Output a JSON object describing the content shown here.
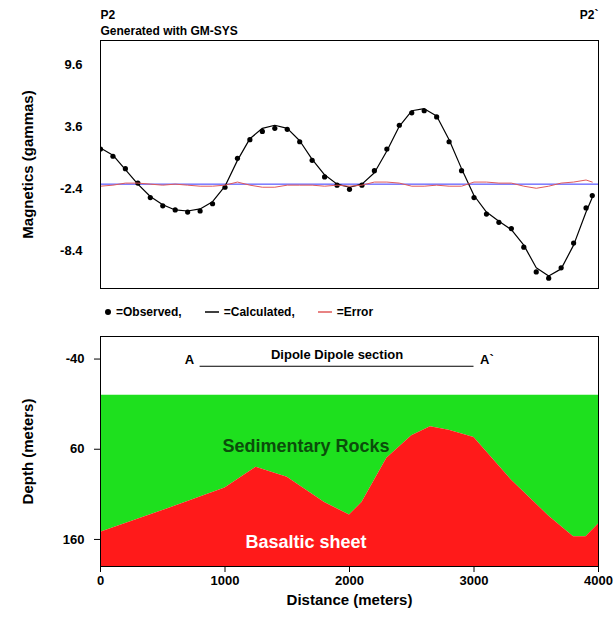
{
  "chart_data": [
    {
      "type": "line",
      "title": "P2",
      "subtitle": "Generated with GM-SYS",
      "end_title": "P2`",
      "y_label": "Magnetics (gammas)",
      "x": [
        0,
        100,
        200,
        300,
        400,
        500,
        600,
        700,
        800,
        900,
        1000,
        1100,
        1200,
        1300,
        1400,
        1500,
        1600,
        1700,
        1800,
        1900,
        2000,
        2100,
        2200,
        2300,
        2400,
        2500,
        2600,
        2700,
        2800,
        2900,
        3000,
        3100,
        3200,
        3300,
        3400,
        3500,
        3600,
        3700,
        3800,
        3900,
        3950
      ],
      "series": [
        {
          "name": "=Observed,",
          "type": "scatter",
          "marker": "circle",
          "color": "#000000",
          "values": [
            1.5,
            0.8,
            -0.4,
            -1.8,
            -3.2,
            -4.0,
            -4.4,
            -4.6,
            -4.5,
            -3.8,
            -2.2,
            0.6,
            2.4,
            3.2,
            3.5,
            3.4,
            2.2,
            0.4,
            -1.2,
            -2.0,
            -2.4,
            -2.0,
            -0.6,
            1.5,
            3.8,
            5.0,
            5.2,
            4.6,
            2.2,
            -0.6,
            -3.2,
            -4.8,
            -5.6,
            -6.2,
            -8.0,
            -10.4,
            -11.0,
            -10.0,
            -7.6,
            -4.2,
            -3.0
          ]
        },
        {
          "name": "=Calculated,",
          "type": "line",
          "line_style": "solid",
          "color": "#000000",
          "values": [
            1.6,
            0.9,
            -0.5,
            -1.9,
            -3.1,
            -3.9,
            -4.4,
            -4.5,
            -4.3,
            -3.6,
            -2.1,
            0.4,
            2.5,
            3.5,
            3.8,
            3.5,
            2.3,
            0.5,
            -1.0,
            -1.9,
            -2.2,
            -1.9,
            -0.8,
            1.3,
            3.7,
            5.2,
            5.4,
            4.7,
            2.4,
            -0.4,
            -3.0,
            -4.6,
            -5.5,
            -6.3,
            -7.8,
            -10.0,
            -10.8,
            -10.1,
            -7.8,
            -4.6,
            -3.2
          ]
        },
        {
          "name": "=Error",
          "type": "line",
          "line_style": "solid",
          "color": "#e05a5a",
          "values": [
            -2.1,
            -2.0,
            -1.8,
            -1.8,
            -1.9,
            -2.0,
            -1.9,
            -2.0,
            -2.1,
            -2.1,
            -2.0,
            -1.7,
            -2.0,
            -2.2,
            -2.2,
            -2.0,
            -2.0,
            -2.0,
            -2.1,
            -2.0,
            -2.1,
            -2.0,
            -1.7,
            -1.7,
            -1.8,
            -2.1,
            -2.1,
            -2.0,
            -2.1,
            -2.1,
            -1.7,
            -1.7,
            -1.8,
            -1.8,
            -2.1,
            -2.3,
            -2.1,
            -1.8,
            -1.7,
            -1.5,
            -1.7
          ]
        }
      ],
      "reference_line": {
        "value": -1.9,
        "color": "#3535ff"
      },
      "xlim": [
        0,
        4000
      ],
      "ylim": [
        -12,
        12
      ],
      "yticks": [
        9.6,
        3.6,
        -2.4,
        -8.4
      ],
      "tick_labels": "y",
      "legend": "bottom"
    },
    {
      "type": "area",
      "x_label": "Distance (meters)",
      "y_label": "Depth (meters)",
      "x": [
        0,
        500,
        1000,
        1250,
        1500,
        1800,
        2000,
        2100,
        2300,
        2500,
        2650,
        2800,
        3000,
        3300,
        3600,
        3800,
        3900,
        4000
      ],
      "surface_depth": 0,
      "series": [
        {
          "name": "Sedimentary Rocks",
          "color": "#1ee01e",
          "label_color": "#0b4d0b",
          "label_at": {
            "x": 1650,
            "y": 57
          }
        },
        {
          "name": "Basaltic sheet",
          "color": "#ff1a1a",
          "label_color": "#ffffff",
          "label_at": {
            "x": 1650,
            "y": 163
          },
          "values": [
            152,
            128,
            103,
            80,
            91,
            119,
            133,
            119,
            70,
            45,
            35,
            39,
            47,
            94,
            134,
            157,
            157,
            143
          ]
        }
      ],
      "section_line": {
        "label": "Dipole Dipole section",
        "start_label": "A",
        "end_label": "A`",
        "x": [
          800,
          3000
        ],
        "depth": -32
      },
      "xlim": [
        0,
        4000
      ],
      "xticks": [
        0,
        1000,
        2000,
        3000,
        4000
      ],
      "ylim": [
        190,
        -65
      ],
      "yticks": [
        -40,
        60,
        160
      ]
    }
  ]
}
